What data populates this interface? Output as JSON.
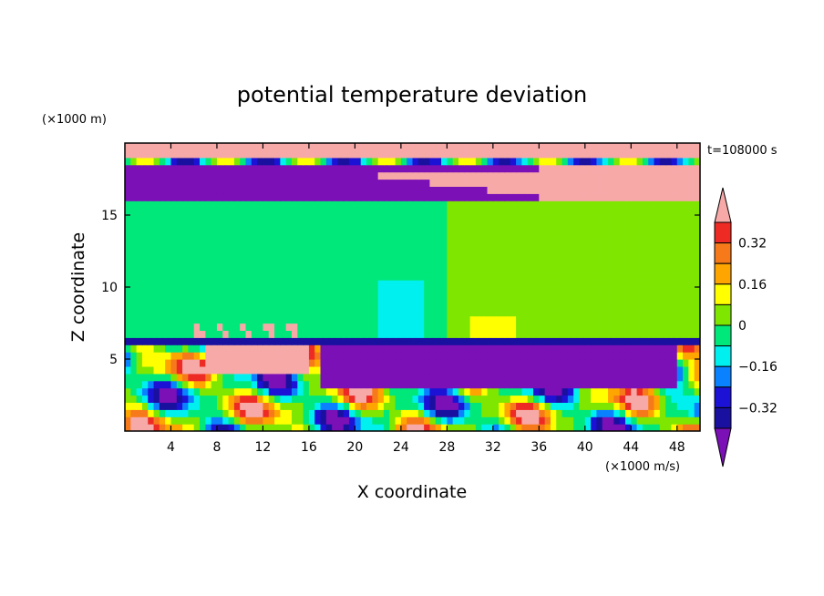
{
  "chart_data": {
    "type": "heatmap",
    "title": "potential temperature deviation",
    "xlabel": "X coordinate",
    "ylabel": "Z coordinate",
    "x_unit": "(×1000 m/s)",
    "y_unit": "(×1000 m)",
    "time_label": "t=108000 s",
    "xlim": [
      0,
      50
    ],
    "ylim": [
      0,
      20
    ],
    "x_ticks": [
      4,
      8,
      12,
      16,
      20,
      24,
      28,
      32,
      36,
      40,
      44,
      48
    ],
    "y_ticks": [
      5,
      10,
      15
    ],
    "colorbar": {
      "labeled_levels": [
        "0.32",
        "0.16",
        "0",
        "−0.16",
        "−0.32"
      ],
      "bands": [
        {
          "lo": 0.4,
          "hi": null,
          "color": "#f7a9a8"
        },
        {
          "lo": 0.32,
          "hi": 0.4,
          "color": "#ee2a24"
        },
        {
          "lo": 0.24,
          "hi": 0.32,
          "color": "#f77a1a"
        },
        {
          "lo": 0.16,
          "hi": 0.24,
          "color": "#ffa500"
        },
        {
          "lo": 0.08,
          "hi": 0.16,
          "color": "#ffff00"
        },
        {
          "lo": 0.0,
          "hi": 0.08,
          "color": "#7fe600"
        },
        {
          "lo": -0.08,
          "hi": 0.0,
          "color": "#00e87a"
        },
        {
          "lo": -0.16,
          "hi": -0.08,
          "color": "#00f0f0"
        },
        {
          "lo": -0.24,
          "hi": -0.16,
          "color": "#0a82ff"
        },
        {
          "lo": -0.32,
          "hi": -0.24,
          "color": "#1c12d6"
        },
        {
          "lo": -0.4,
          "hi": -0.32,
          "color": "#1a10a0"
        },
        {
          "lo": null,
          "hi": -0.4,
          "color": "#7a10b6"
        }
      ]
    },
    "regions": [
      {
        "name": "upper-warm-strip",
        "x": [
          0,
          50
        ],
        "z": [
          18.8,
          19.8
        ],
        "value": 0.45
      },
      {
        "name": "upper-cold-layer",
        "x": [
          0,
          50
        ],
        "z": [
          16.2,
          18.5
        ],
        "value": -0.45
      },
      {
        "name": "upper-warm-tongue",
        "x": [
          20,
          50
        ],
        "z": [
          16.6,
          18.5
        ],
        "value": 0.45
      },
      {
        "name": "mid-neutral-left",
        "x": [
          0,
          28
        ],
        "z": [
          6.2,
          16.0
        ],
        "value": -0.02
      },
      {
        "name": "mid-neutral-right",
        "x": [
          28,
          50
        ],
        "z": [
          6.2,
          16.0
        ],
        "value": 0.03
      },
      {
        "name": "mid-cyan-column",
        "x": [
          22,
          26
        ],
        "z": [
          6.8,
          10.5
        ],
        "value": -0.1
      },
      {
        "name": "low-cold-layer",
        "x": [
          17,
          48
        ],
        "z": [
          3.0,
          6.0
        ],
        "value": -0.45
      },
      {
        "name": "low-warm-patch",
        "x": [
          7,
          16
        ],
        "z": [
          4.0,
          6.8
        ],
        "value": 0.45
      },
      {
        "name": "boundary-mixed-layer",
        "x": [
          0,
          50
        ],
        "z": [
          0,
          5.5
        ],
        "value": 0.0
      }
    ]
  }
}
